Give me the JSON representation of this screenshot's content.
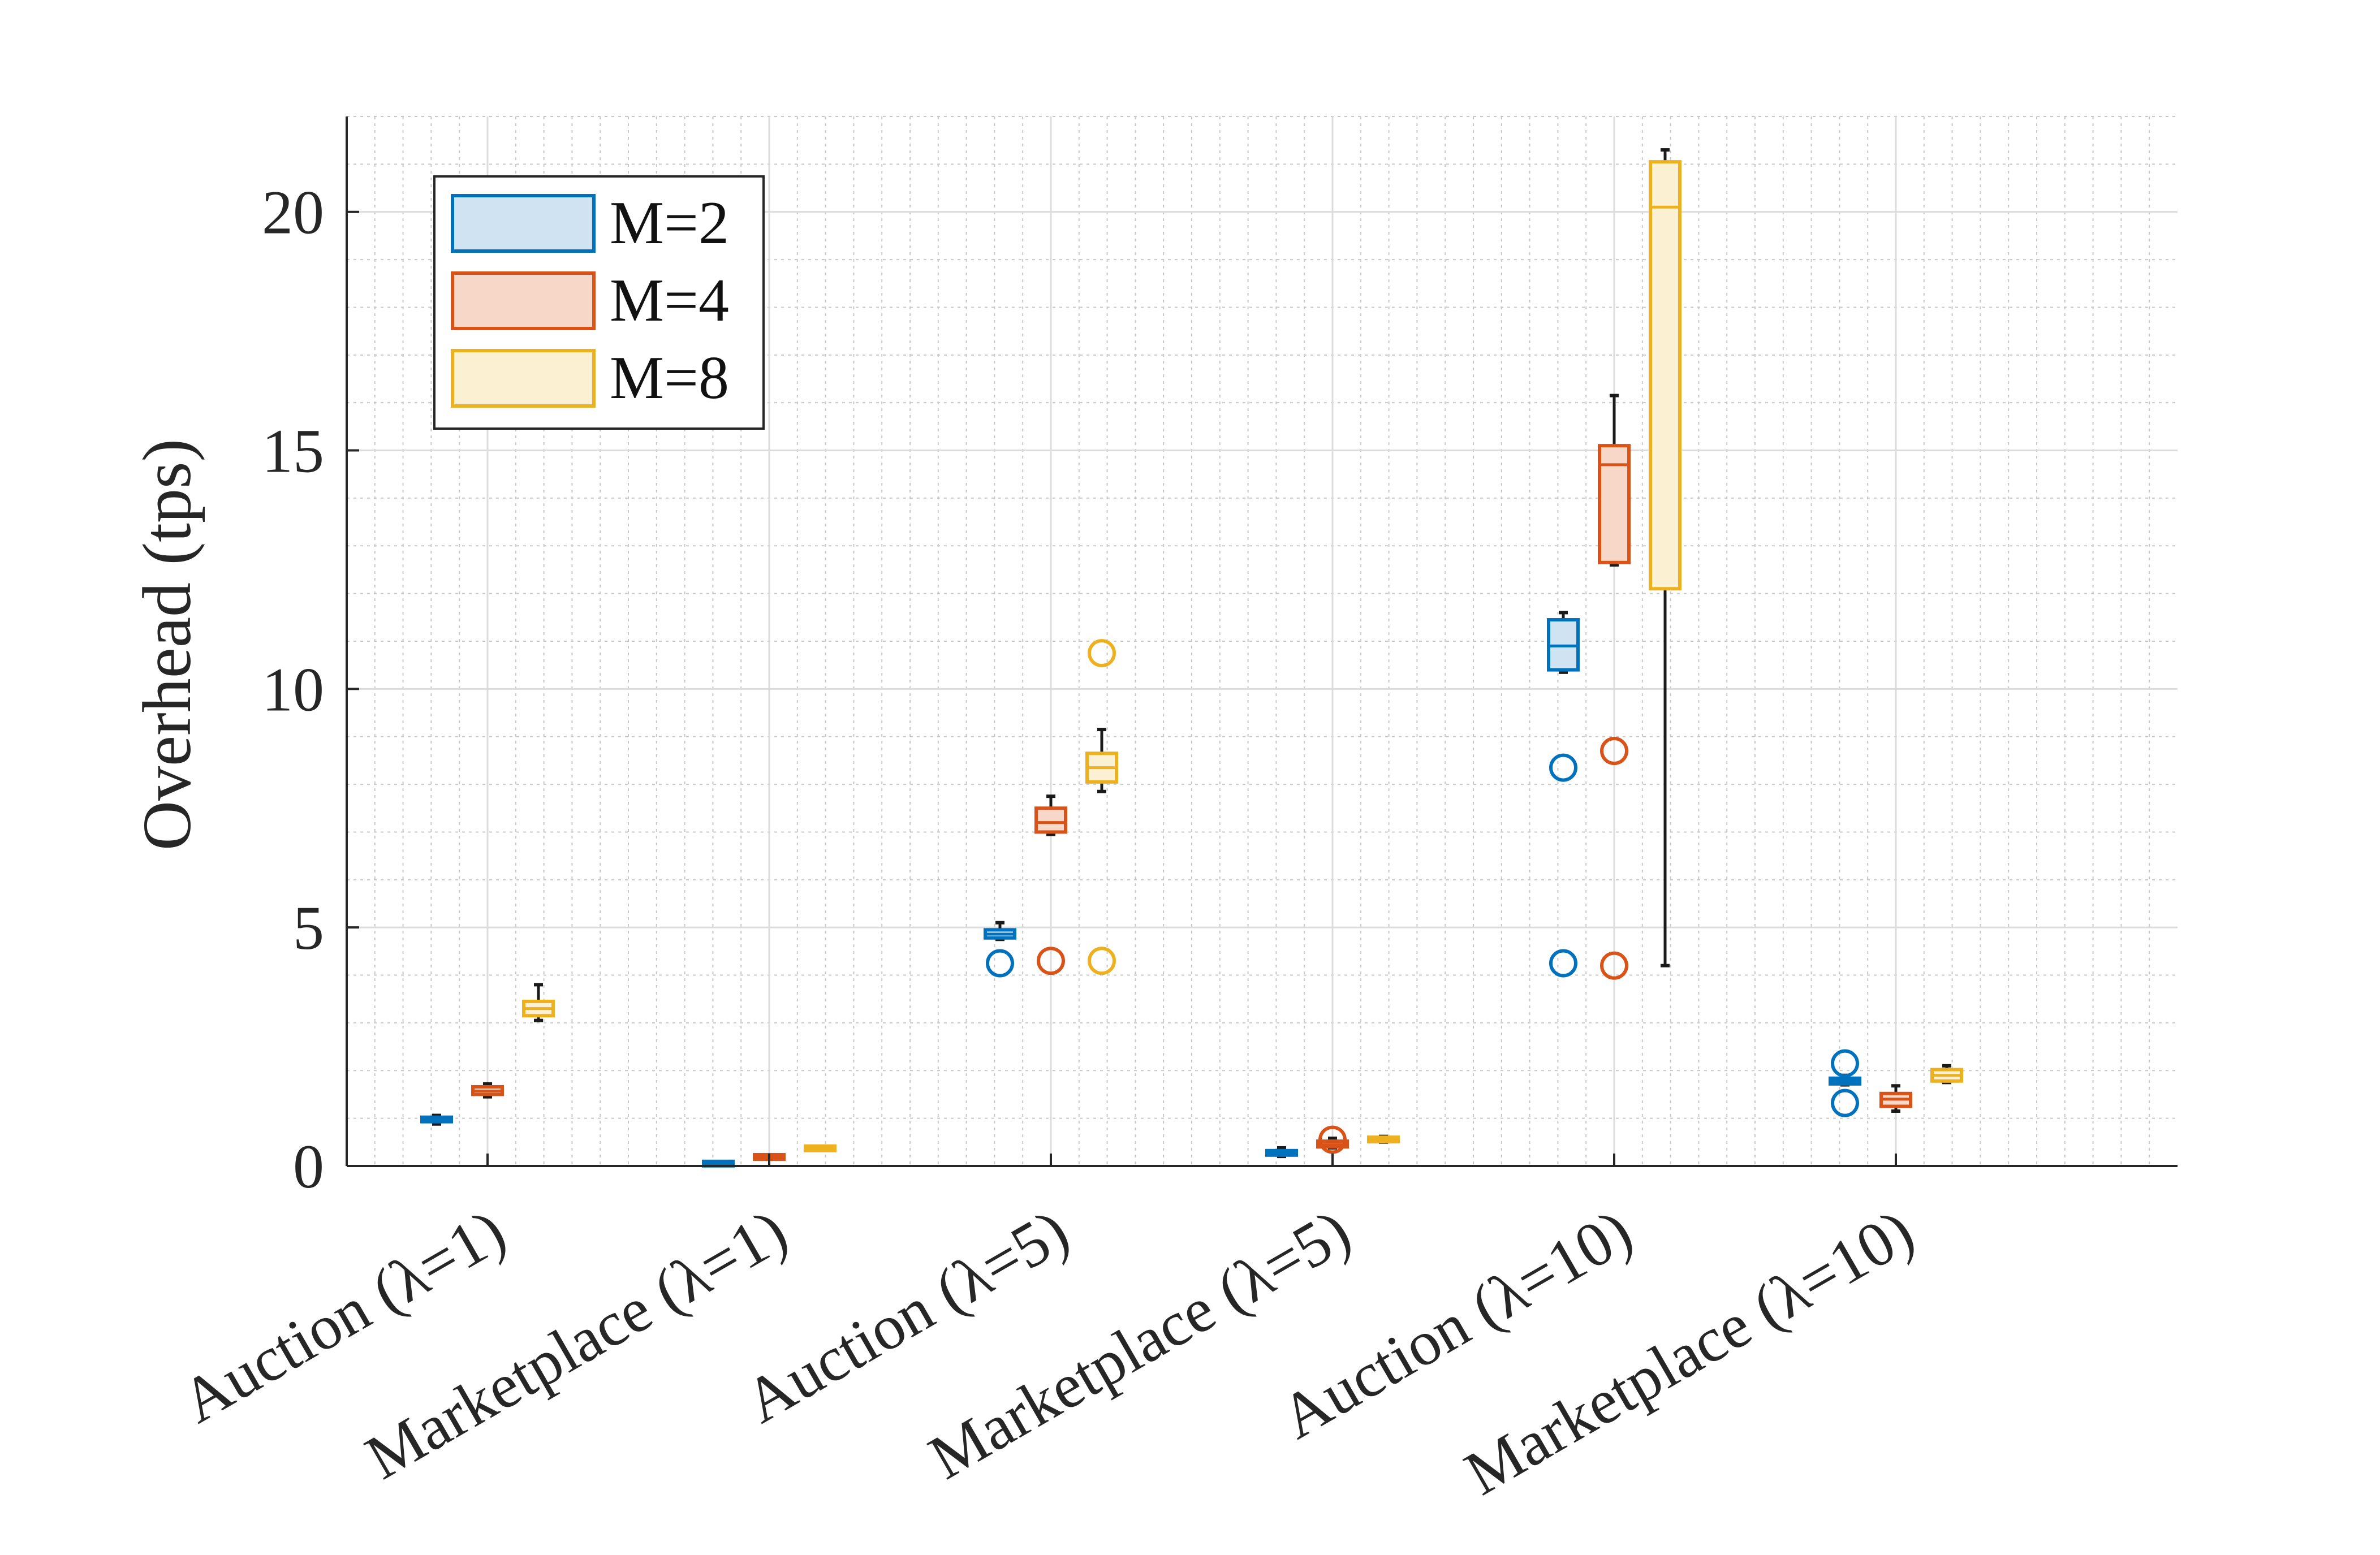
{
  "chart_data": {
    "type": "box",
    "title": "",
    "xlabel": "",
    "ylabel": "Overhead (tps)",
    "ylim": [
      0,
      22
    ],
    "yticks": [
      0,
      5,
      10,
      15,
      20
    ],
    "grid": true,
    "minor_grid": true,
    "legend_position": "top-left",
    "categories": [
      "Auction (λ=1)",
      "Marketplace (λ=1)",
      "Auction (λ=5)",
      "Marketplace (λ=5)",
      "Auction (λ=10)",
      "Marketplace (λ=10)"
    ],
    "series": [
      {
        "name": "M=2",
        "color": "#0072BD",
        "fill": "#cfe3f2",
        "boxes": [
          {
            "min": 0.88,
            "q1": 0.93,
            "median": 0.97,
            "q3": 1.02,
            "max": 1.06,
            "outliers": []
          },
          {
            "min": 0.03,
            "q1": 0.04,
            "median": 0.05,
            "q3": 0.06,
            "max": 0.07,
            "outliers": []
          },
          {
            "min": 4.75,
            "q1": 4.78,
            "median": 4.86,
            "q3": 4.95,
            "max": 5.1,
            "outliers": [
              4.25
            ]
          },
          {
            "min": 0.2,
            "q1": 0.23,
            "median": 0.27,
            "q3": 0.32,
            "max": 0.38,
            "outliers": []
          },
          {
            "min": 10.35,
            "q1": 10.4,
            "median": 10.9,
            "q3": 11.45,
            "max": 11.6,
            "outliers": [
              8.35,
              4.25
            ]
          },
          {
            "min": 1.7,
            "q1": 1.72,
            "median": 1.78,
            "q3": 1.84,
            "max": 1.9,
            "outliers": [
              2.15,
              1.32
            ]
          }
        ]
      },
      {
        "name": "M=4",
        "color": "#D95319",
        "fill": "#f7d7c8",
        "boxes": [
          {
            "min": 1.45,
            "q1": 1.5,
            "median": 1.57,
            "q3": 1.66,
            "max": 1.72,
            "outliers": []
          },
          {
            "min": 0.15,
            "q1": 0.17,
            "median": 0.19,
            "q3": 0.21,
            "max": 0.22,
            "outliers": []
          },
          {
            "min": 6.95,
            "q1": 7.0,
            "median": 7.2,
            "q3": 7.5,
            "max": 7.75,
            "outliers": [
              4.3
            ]
          },
          {
            "min": 0.38,
            "q1": 0.4,
            "median": 0.45,
            "q3": 0.52,
            "max": 0.58,
            "outliers": [
              0.55
            ]
          },
          {
            "min": 12.6,
            "q1": 12.65,
            "median": 14.7,
            "q3": 15.1,
            "max": 16.15,
            "outliers": [
              8.7,
              4.2
            ]
          },
          {
            "min": 1.15,
            "q1": 1.25,
            "median": 1.4,
            "q3": 1.52,
            "max": 1.68,
            "outliers": []
          }
        ]
      },
      {
        "name": "M=8",
        "color": "#EDB120",
        "fill": "#fbf0d2",
        "boxes": [
          {
            "min": 3.05,
            "q1": 3.15,
            "median": 3.3,
            "q3": 3.45,
            "max": 3.8,
            "outliers": []
          },
          {
            "min": 0.33,
            "q1": 0.35,
            "median": 0.37,
            "q3": 0.39,
            "max": 0.41,
            "outliers": []
          },
          {
            "min": 7.85,
            "q1": 8.05,
            "median": 8.35,
            "q3": 8.65,
            "max": 9.15,
            "outliers": [
              10.75,
              4.3
            ]
          },
          {
            "min": 0.5,
            "q1": 0.52,
            "median": 0.55,
            "q3": 0.59,
            "max": 0.62,
            "outliers": []
          },
          {
            "min": 4.2,
            "q1": 12.1,
            "median": 20.1,
            "q3": 21.05,
            "max": 21.3,
            "outliers": []
          },
          {
            "min": 1.75,
            "q1": 1.78,
            "median": 1.9,
            "q3": 2.02,
            "max": 2.1,
            "outliers": []
          }
        ]
      }
    ]
  }
}
